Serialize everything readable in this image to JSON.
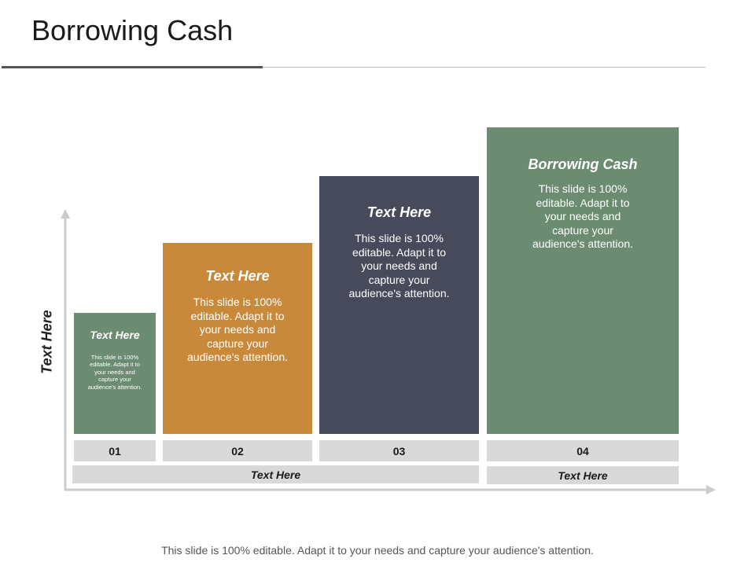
{
  "slide": {
    "title": "Borrowing Cash",
    "y_axis_label": "Text Here",
    "footer": "This slide is 100% editable. Adapt it to your needs and capture your audience's attention."
  },
  "colors": {
    "green": "#6b8c70",
    "orange": "#c8893b",
    "slate": "#464a5a",
    "label_gray": "#d9d9d9",
    "axis_gray": "#cccccc"
  },
  "steps": [
    {
      "number": "01",
      "title": "Text Here",
      "description": "This slide is 100% editable. Adapt it to your needs and capture your audience's attention.",
      "color": "#6b8c70"
    },
    {
      "number": "02",
      "title": "Text Here",
      "description": "This slide is 100% editable. Adapt it to your needs and capture your audience's attention.",
      "color": "#c8893b"
    },
    {
      "number": "03",
      "title": "Text Here",
      "description": "This slide is 100% editable. Adapt it to your needs and capture your audience's attention.",
      "color": "#464a5a"
    },
    {
      "number": "04",
      "title": "Borrowing Cash",
      "description": "This slide is 100% editable. Adapt it to your needs and capture your audience's attention.",
      "color": "#6b8c70"
    }
  ],
  "groups": [
    {
      "label": "Text Here"
    },
    {
      "label": "Text Here"
    }
  ]
}
